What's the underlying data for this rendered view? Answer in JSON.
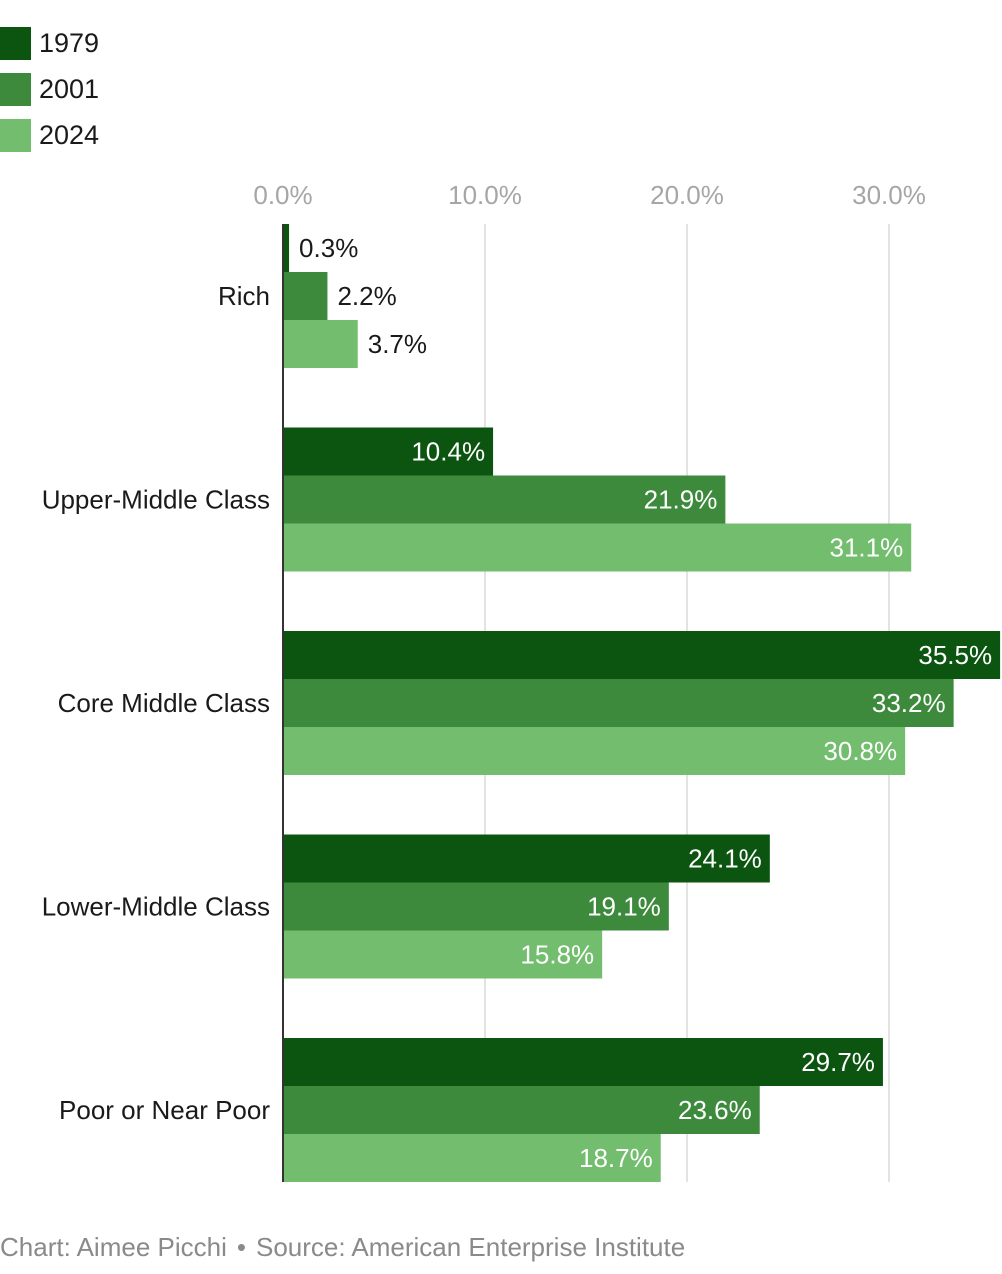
{
  "chart_data": {
    "type": "bar",
    "orientation": "horizontal",
    "categories": [
      "Rich",
      "Upper-Middle Class",
      "Core Middle Class",
      "Lower-Middle Class",
      "Poor or Near Poor"
    ],
    "series": [
      {
        "name": "1979",
        "color": "#0b5510",
        "values": [
          0.3,
          10.4,
          35.5,
          24.1,
          29.7
        ],
        "labels": [
          "0.3%",
          "10.4%",
          "35.5%",
          "24.1%",
          "29.7%"
        ]
      },
      {
        "name": "2001",
        "color": "#3d8a3d",
        "values": [
          2.2,
          21.9,
          33.2,
          19.1,
          23.6
        ],
        "labels": [
          "2.2%",
          "21.9%",
          "33.2%",
          "19.1%",
          "23.6%"
        ]
      },
      {
        "name": "2024",
        "color": "#72bd6e",
        "values": [
          3.7,
          31.1,
          30.8,
          15.8,
          18.7
        ],
        "labels": [
          "3.7%",
          "31.1%",
          "30.8%",
          "15.8%",
          "18.7%"
        ]
      }
    ],
    "xlim": [
      0,
      35.5
    ],
    "xticks": [
      0,
      10,
      20,
      30
    ],
    "xtick_labels": [
      "0.0%",
      "10.0%",
      "20.0%",
      "30.0%"
    ],
    "grid": true,
    "legend_position": "top-left",
    "title": "",
    "xlabel": "",
    "ylabel": ""
  },
  "footer": {
    "credit": "Chart: Aimee Picchi",
    "separator": "•",
    "source": "Source: American Enterprise Institute"
  }
}
